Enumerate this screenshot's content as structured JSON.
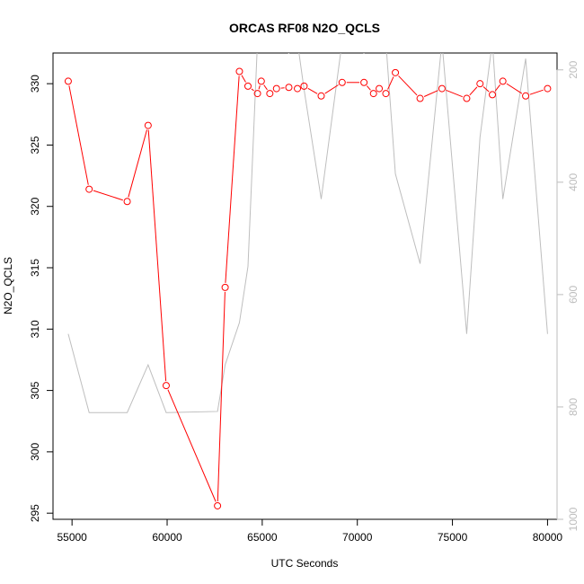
{
  "chart_data": {
    "type": "line",
    "title": "ORCAS RF08 N2O_QCLS",
    "xlabel": "UTC Seconds",
    "ylabel": "N2O_QCLS",
    "xlim": [
      54000,
      80500
    ],
    "ylim": [
      294.5,
      332.5
    ],
    "y2lim": [
      1000,
      170
    ],
    "y2_inverted": true,
    "x_ticks": [
      55000,
      60000,
      65000,
      70000,
      75000,
      80000
    ],
    "y_ticks": [
      295,
      300,
      305,
      310,
      315,
      320,
      325,
      330
    ],
    "y2_ticks": [
      200,
      400,
      600,
      800,
      1000
    ],
    "grid": false,
    "legend": "none",
    "series": [
      {
        "axis": "left",
        "color": "#ff0000",
        "marker": "open-circle",
        "x": [
          54800,
          55900,
          57900,
          59000,
          59950,
          62650,
          63050,
          63800,
          64250,
          64750,
          64950,
          65400,
          65750,
          66400,
          66850,
          67200,
          68100,
          69200,
          70350,
          70850,
          71150,
          71500,
          72000,
          73300,
          74450,
          75750,
          76450,
          77100,
          77650,
          78850,
          80000
        ],
        "y": [
          330.2,
          321.4,
          320.4,
          326.6,
          305.4,
          295.6,
          313.4,
          331.0,
          329.8,
          329.2,
          330.2,
          329.2,
          329.6,
          329.7,
          329.6,
          329.8,
          329.0,
          330.1,
          330.1,
          329.2,
          329.6,
          329.2,
          330.9,
          328.8,
          329.6,
          328.8,
          330.0,
          329.1,
          330.2,
          329.0,
          329.6
        ]
      },
      {
        "axis": "right",
        "color": "#bebebe",
        "marker": "none",
        "x": [
          54800,
          55900,
          57900,
          59000,
          59950,
          62650,
          63050,
          63800,
          64250,
          64750,
          64950,
          65400,
          65750,
          66400,
          66850,
          67200,
          68100,
          69200,
          70350,
          70850,
          71150,
          71500,
          72000,
          73300,
          74450,
          75750,
          76450,
          77100,
          77650,
          78850,
          80000
        ],
        "y": [
          670,
          810,
          810,
          725,
          810,
          808,
          725,
          650,
          550,
          150,
          150,
          150,
          160,
          170,
          150,
          235,
          430,
          150,
          170,
          150,
          150,
          150,
          385,
          545,
          150,
          670,
          320,
          150,
          430,
          180,
          670
        ]
      }
    ]
  }
}
